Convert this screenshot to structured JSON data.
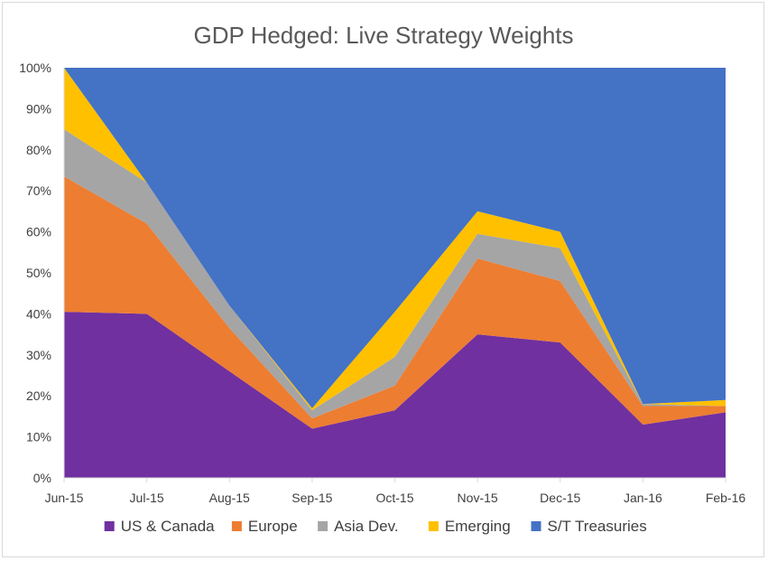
{
  "chart_data": {
    "type": "area",
    "stacked": true,
    "title": "GDP Hedged: Live Strategy Weights",
    "xlabel": "",
    "ylabel": "",
    "categories": [
      "Jun-15",
      "Jul-15",
      "Aug-15",
      "Sep-15",
      "Oct-15",
      "Nov-15",
      "Dec-15",
      "Jan-16",
      "Feb-16"
    ],
    "y_ticks": [
      "0%",
      "10%",
      "20%",
      "30%",
      "40%",
      "50%",
      "60%",
      "70%",
      "80%",
      "90%",
      "100%"
    ],
    "ylim": [
      0,
      100
    ],
    "grid": false,
    "legend_position": "bottom",
    "series": [
      {
        "name": "US & Canada",
        "color": "#7030A0",
        "values": [
          40.5,
          40.0,
          26.0,
          12.0,
          16.5,
          35.0,
          33.0,
          13.0,
          16.0
        ]
      },
      {
        "name": "Europe",
        "color": "#ED7D31",
        "values": [
          33.0,
          22.0,
          10.5,
          2.5,
          6.0,
          18.5,
          15.0,
          4.5,
          1.5
        ]
      },
      {
        "name": "Asia Dev.",
        "color": "#A5A5A5",
        "values": [
          11.5,
          10.0,
          5.5,
          2.0,
          7.0,
          6.0,
          8.0,
          0.5,
          0.0
        ]
      },
      {
        "name": "Emerging",
        "color": "#FFC000",
        "values": [
          15.0,
          0.0,
          0.0,
          0.5,
          11.0,
          5.5,
          4.0,
          0.0,
          1.5
        ]
      },
      {
        "name": "S/T Treasuries",
        "color": "#4472C4",
        "values": [
          0.0,
          28.0,
          58.0,
          83.0,
          59.5,
          35.0,
          40.0,
          82.0,
          81.0
        ]
      }
    ]
  }
}
